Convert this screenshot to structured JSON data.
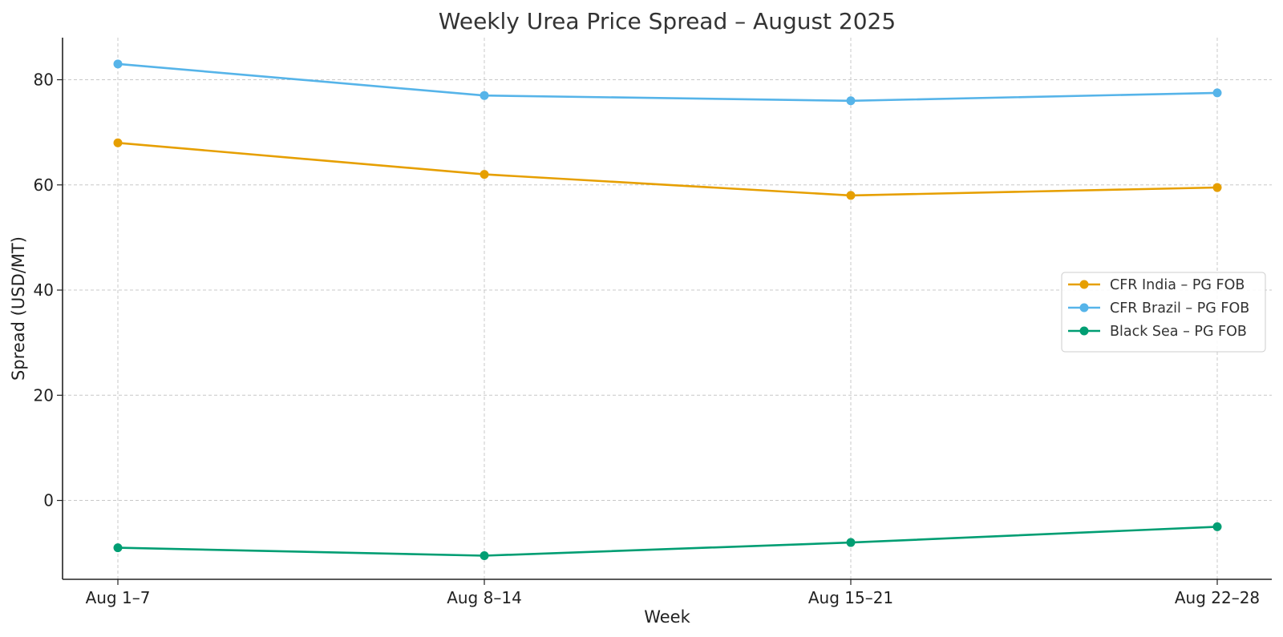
{
  "chart_data": {
    "type": "line",
    "title": "Weekly Urea Price Spread – August 2025",
    "xlabel": "Week",
    "ylabel": "Spread (USD/MT)",
    "categories": [
      "Aug 1–7",
      "Aug 8–14",
      "Aug 15–21",
      "Aug 22–28"
    ],
    "ylim": [
      -15,
      88
    ],
    "yticks": [
      0,
      20,
      40,
      60,
      80
    ],
    "grid": true,
    "legend_position": "center-right",
    "series": [
      {
        "name": "CFR India – PG FOB",
        "color": "#E69F00",
        "values": [
          68,
          62,
          58,
          59.5
        ]
      },
      {
        "name": "CFR Brazil – PG FOB",
        "color": "#56B4E9",
        "values": [
          83,
          77,
          76,
          77.5
        ]
      },
      {
        "name": "Black Sea – PG FOB",
        "color": "#009E73",
        "values": [
          -9,
          -10.5,
          -8,
          -5
        ]
      }
    ]
  }
}
